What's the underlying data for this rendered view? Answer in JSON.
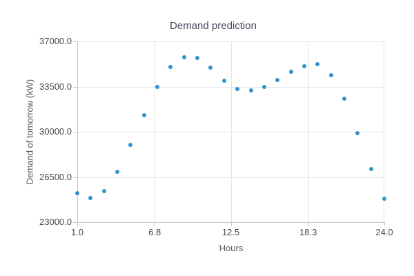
{
  "chart_data": {
    "type": "scatter",
    "title": "Demand prediction",
    "xlabel": "Hours",
    "ylabel": "Demand of tomorrow (kW)",
    "xlim": [
      1.0,
      24.0
    ],
    "ylim": [
      23000.0,
      37000.0
    ],
    "x_tick_values": [
      1.0,
      6.8,
      12.5,
      18.3,
      24.0
    ],
    "x_tick_labels": [
      "1.0",
      "6.8",
      "12.5",
      "18.3",
      "24.0"
    ],
    "y_tick_values": [
      23000.0,
      26500.0,
      30000.0,
      33500.0,
      37000.0
    ],
    "y_tick_labels": [
      "23000.0",
      "26500.0",
      "30000.0",
      "33500.0",
      "37000.0"
    ],
    "grid": true,
    "legend": "none",
    "point_color": "#2f93c8",
    "x": [
      1,
      2,
      3,
      4,
      5,
      6,
      7,
      8,
      9,
      10,
      11,
      12,
      13,
      14,
      15,
      16,
      17,
      18,
      19,
      20,
      21,
      22,
      23,
      24
    ],
    "y": [
      25250,
      24850,
      25400,
      26900,
      29000,
      31300,
      33450,
      35000,
      35750,
      35700,
      34950,
      33950,
      33300,
      33200,
      33480,
      34000,
      34650,
      35100,
      35250,
      34400,
      32550,
      29900,
      27100,
      24800
    ]
  },
  "colors": {
    "point": "#2f93c8",
    "axis_line": "#c7c7ce",
    "gridline": "#e5e5ea",
    "tick_text": "#47474f",
    "axis_name_text": "#55555d",
    "title_text": "#454a5c",
    "background": "#ffffff"
  }
}
